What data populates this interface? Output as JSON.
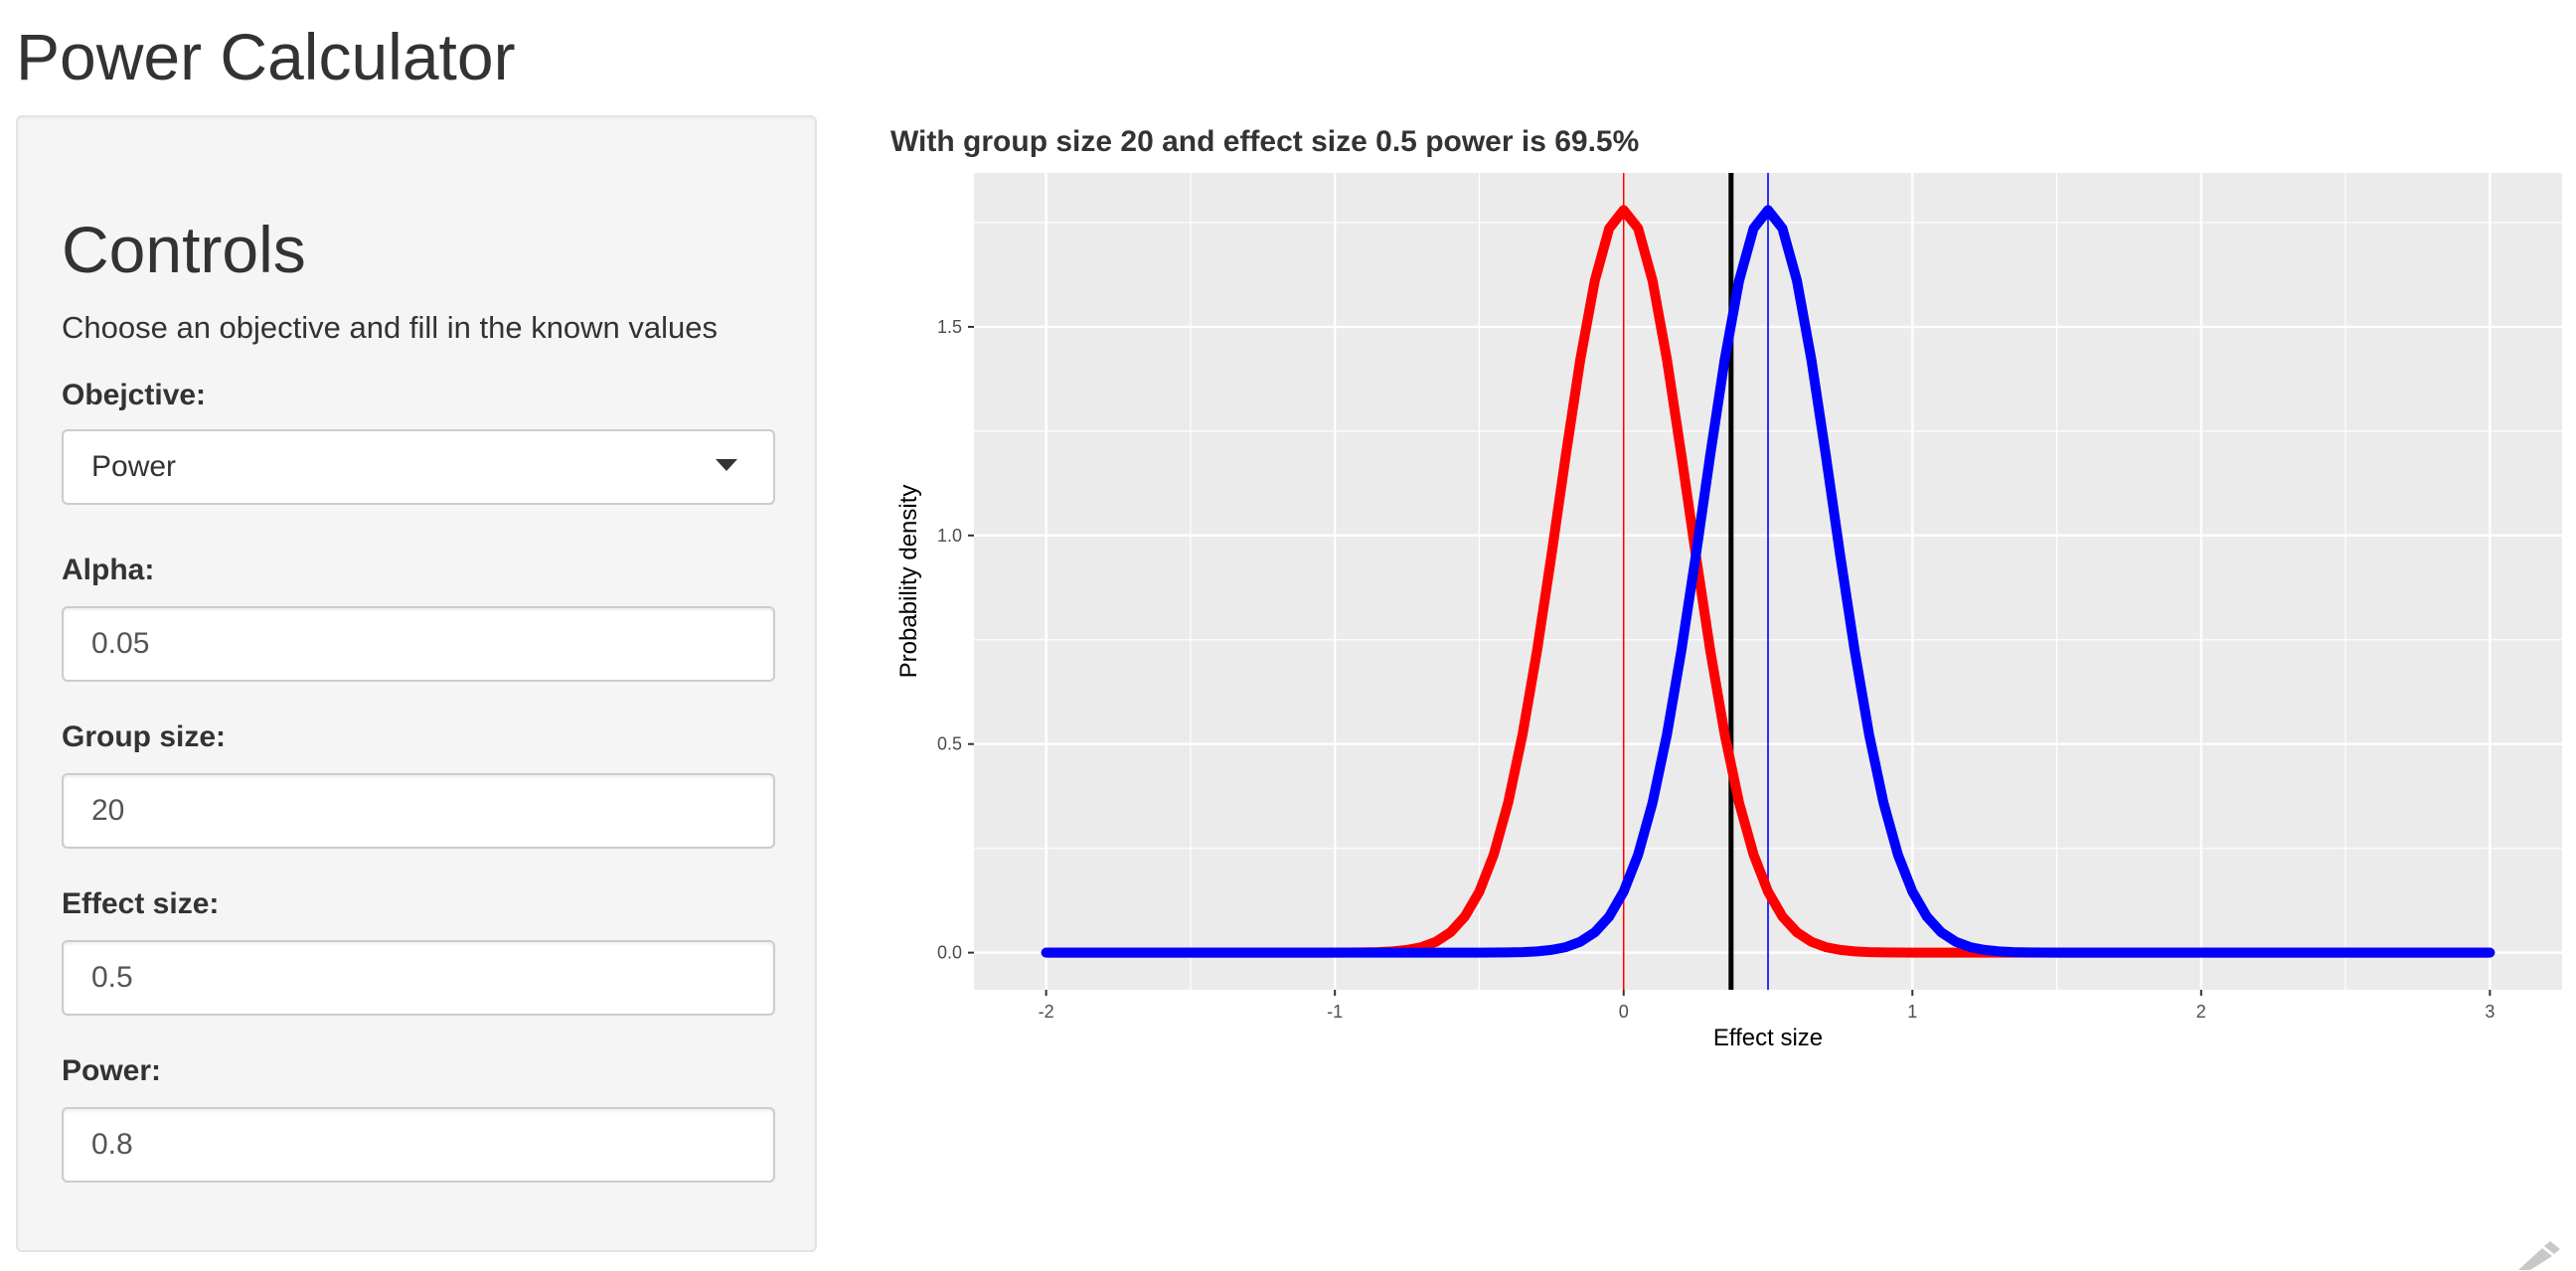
{
  "app": {
    "title": "Power Calculator"
  },
  "controls": {
    "title": "Controls",
    "description": "Choose an objective and fill in the known values",
    "objective": {
      "label": "Obejctive:",
      "value": "Power"
    },
    "alpha": {
      "label": "Alpha:",
      "value": "0.05"
    },
    "group_size": {
      "label": "Group size:",
      "value": "20"
    },
    "effect_size": {
      "label": "Effect size:",
      "value": "0.5"
    },
    "power": {
      "label": "Power:",
      "value": "0.8"
    }
  },
  "chart_data": {
    "type": "line",
    "title": "With group size 20 and effect size 0.5 power is 69.5%",
    "xlabel": "Effect size",
    "ylabel": "Probability density",
    "xlim": [
      -2,
      3
    ],
    "ylim": [
      0,
      1.78
    ],
    "x_ticks": [
      "-2",
      "-1",
      "0",
      "1",
      "2",
      "3"
    ],
    "y_ticks": [
      "0.0",
      "0.5",
      "1.0",
      "1.5"
    ],
    "grid": true,
    "series": [
      {
        "color": "#ff0000",
        "mean": 0.0,
        "sd": 0.2236,
        "peak": 1.78,
        "x": [
          -2,
          3
        ]
      },
      {
        "color": "#0000ff",
        "mean": 0.5,
        "sd": 0.2236,
        "peak": 1.78,
        "x": [
          -2,
          3
        ]
      }
    ],
    "vlines": [
      {
        "x": 0.0,
        "color": "#ff0000",
        "kind": "null-mean"
      },
      {
        "x": 0.5,
        "color": "#0000ff",
        "kind": "effect-mean"
      },
      {
        "x": 0.372,
        "color": "#000000",
        "kind": "critical-value"
      }
    ],
    "colors": {
      "panel": "#ebebeb",
      "grid": "#ffffff"
    }
  }
}
